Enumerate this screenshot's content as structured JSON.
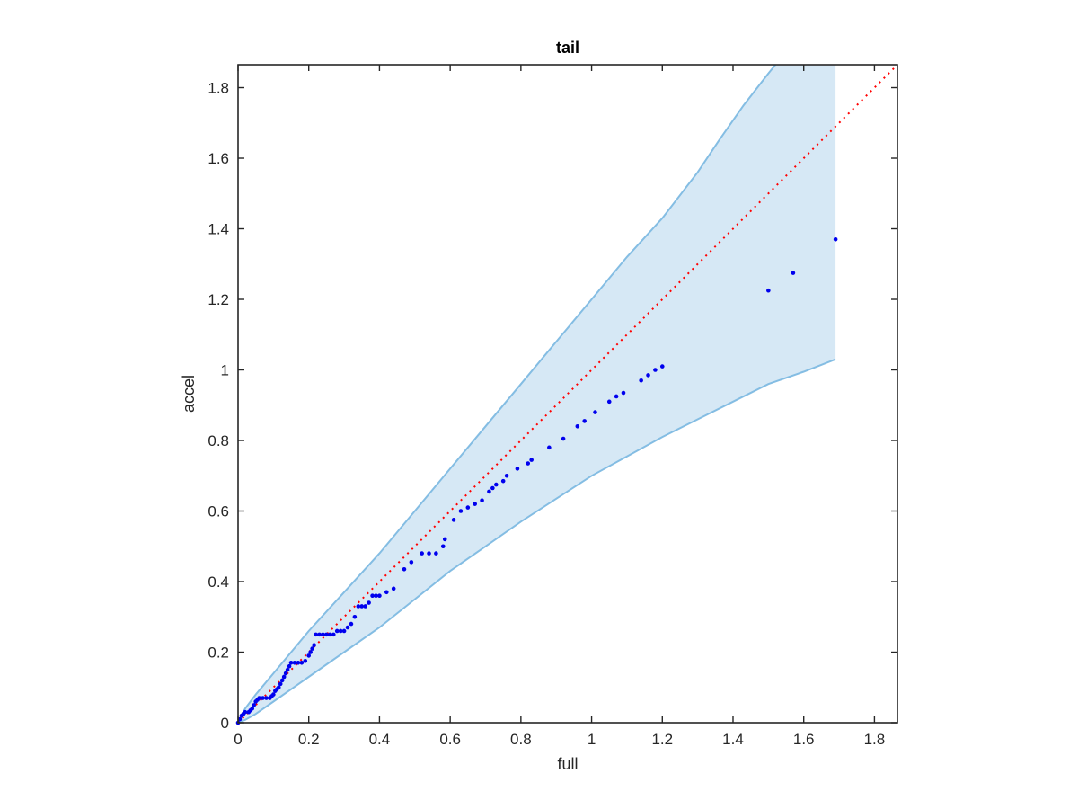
{
  "chart_data": {
    "type": "scatter",
    "title": "tail",
    "xlabel": "full",
    "ylabel": "accel",
    "xlim": [
      0,
      1.865
    ],
    "ylim": [
      0,
      1.865
    ],
    "xticks": [
      "0",
      "0.2",
      "0.4",
      "0.6",
      "0.8",
      "1",
      "1.2",
      "1.4",
      "1.6",
      "1.8"
    ],
    "yticks": [
      "0",
      "0.2",
      "0.4",
      "0.6",
      "0.8",
      "1",
      "1.2",
      "1.4",
      "1.6",
      "1.8"
    ],
    "grid": false,
    "colors": {
      "points": "#0000ee",
      "reference": "#ff0000",
      "band_fill": "#d6e8f5",
      "band_edge": "#84bde3",
      "axis": "#262626"
    },
    "band": {
      "upper": [
        [
          0.0,
          0.0
        ],
        [
          0.02,
          0.04
        ],
        [
          0.05,
          0.08
        ],
        [
          0.1,
          0.14
        ],
        [
          0.2,
          0.26
        ],
        [
          0.3,
          0.37
        ],
        [
          0.4,
          0.48
        ],
        [
          0.5,
          0.6
        ],
        [
          0.6,
          0.72
        ],
        [
          0.7,
          0.84
        ],
        [
          0.8,
          0.96
        ],
        [
          0.9,
          1.08
        ],
        [
          1.0,
          1.2
        ],
        [
          1.1,
          1.32
        ],
        [
          1.2,
          1.43
        ],
        [
          1.3,
          1.56
        ],
        [
          1.36,
          1.65
        ],
        [
          1.43,
          1.75
        ],
        [
          1.5,
          1.84
        ],
        [
          1.52,
          1.865
        ],
        [
          1.69,
          1.865
        ]
      ],
      "lower": [
        [
          0.0,
          0.0
        ],
        [
          0.02,
          0.008
        ],
        [
          0.05,
          0.025
        ],
        [
          0.1,
          0.06
        ],
        [
          0.2,
          0.13
        ],
        [
          0.3,
          0.2
        ],
        [
          0.4,
          0.27
        ],
        [
          0.5,
          0.35
        ],
        [
          0.6,
          0.43
        ],
        [
          0.7,
          0.5
        ],
        [
          0.8,
          0.57
        ],
        [
          0.9,
          0.635
        ],
        [
          1.0,
          0.7
        ],
        [
          1.1,
          0.755
        ],
        [
          1.2,
          0.81
        ],
        [
          1.3,
          0.86
        ],
        [
          1.4,
          0.91
        ],
        [
          1.5,
          0.96
        ],
        [
          1.6,
          0.995
        ],
        [
          1.69,
          1.03
        ]
      ]
    },
    "reference_line": [
      [
        0,
        0
      ],
      [
        1.865,
        1.865
      ]
    ],
    "points": [
      [
        0.0,
        0.0
      ],
      [
        0.005,
        0.01
      ],
      [
        0.01,
        0.02
      ],
      [
        0.015,
        0.025
      ],
      [
        0.02,
        0.03
      ],
      [
        0.03,
        0.03
      ],
      [
        0.035,
        0.035
      ],
      [
        0.04,
        0.04
      ],
      [
        0.045,
        0.05
      ],
      [
        0.05,
        0.06
      ],
      [
        0.055,
        0.065
      ],
      [
        0.06,
        0.07
      ],
      [
        0.07,
        0.07
      ],
      [
        0.08,
        0.07
      ],
      [
        0.09,
        0.07
      ],
      [
        0.095,
        0.075
      ],
      [
        0.1,
        0.08
      ],
      [
        0.105,
        0.09
      ],
      [
        0.11,
        0.095
      ],
      [
        0.115,
        0.1
      ],
      [
        0.12,
        0.11
      ],
      [
        0.125,
        0.12
      ],
      [
        0.13,
        0.13
      ],
      [
        0.135,
        0.14
      ],
      [
        0.14,
        0.15
      ],
      [
        0.145,
        0.16
      ],
      [
        0.15,
        0.17
      ],
      [
        0.16,
        0.17
      ],
      [
        0.17,
        0.17
      ],
      [
        0.18,
        0.17
      ],
      [
        0.19,
        0.175
      ],
      [
        0.2,
        0.19
      ],
      [
        0.205,
        0.2
      ],
      [
        0.21,
        0.21
      ],
      [
        0.215,
        0.22
      ],
      [
        0.22,
        0.25
      ],
      [
        0.23,
        0.25
      ],
      [
        0.24,
        0.25
      ],
      [
        0.25,
        0.25
      ],
      [
        0.26,
        0.25
      ],
      [
        0.27,
        0.25
      ],
      [
        0.28,
        0.26
      ],
      [
        0.29,
        0.26
      ],
      [
        0.3,
        0.26
      ],
      [
        0.31,
        0.27
      ],
      [
        0.32,
        0.28
      ],
      [
        0.33,
        0.3
      ],
      [
        0.34,
        0.33
      ],
      [
        0.35,
        0.33
      ],
      [
        0.36,
        0.33
      ],
      [
        0.37,
        0.34
      ],
      [
        0.38,
        0.36
      ],
      [
        0.39,
        0.36
      ],
      [
        0.4,
        0.36
      ],
      [
        0.42,
        0.37
      ],
      [
        0.44,
        0.38
      ],
      [
        0.47,
        0.435
      ],
      [
        0.49,
        0.455
      ],
      [
        0.52,
        0.48
      ],
      [
        0.54,
        0.48
      ],
      [
        0.56,
        0.48
      ],
      [
        0.58,
        0.5
      ],
      [
        0.585,
        0.52
      ],
      [
        0.61,
        0.575
      ],
      [
        0.63,
        0.6
      ],
      [
        0.65,
        0.61
      ],
      [
        0.67,
        0.62
      ],
      [
        0.69,
        0.63
      ],
      [
        0.71,
        0.655
      ],
      [
        0.72,
        0.665
      ],
      [
        0.73,
        0.675
      ],
      [
        0.75,
        0.685
      ],
      [
        0.76,
        0.7
      ],
      [
        0.79,
        0.72
      ],
      [
        0.82,
        0.735
      ],
      [
        0.83,
        0.745
      ],
      [
        0.88,
        0.78
      ],
      [
        0.92,
        0.805
      ],
      [
        0.96,
        0.84
      ],
      [
        0.98,
        0.855
      ],
      [
        1.01,
        0.88
      ],
      [
        1.05,
        0.91
      ],
      [
        1.07,
        0.925
      ],
      [
        1.09,
        0.935
      ],
      [
        1.14,
        0.97
      ],
      [
        1.16,
        0.985
      ],
      [
        1.18,
        1.0
      ],
      [
        1.2,
        1.01
      ],
      [
        1.5,
        1.225
      ],
      [
        1.57,
        1.275
      ],
      [
        1.69,
        1.37
      ]
    ]
  }
}
